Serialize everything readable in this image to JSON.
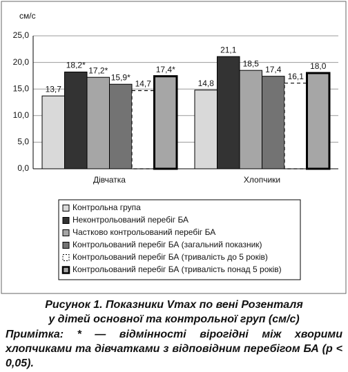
{
  "chart_data": {
    "type": "bar",
    "y_unit": "см/с",
    "categories": [
      "Дівчатка",
      "Хлопчики"
    ],
    "series": [
      {
        "name": "Контрольна група",
        "color": "#d9d9d9",
        "border": "solid",
        "values": [
          13.7,
          14.8
        ],
        "value_labels": [
          "13,7",
          "14,8"
        ]
      },
      {
        "name": "Неконтрольований перебіг БА",
        "color": "#333333",
        "border": "solid",
        "values": [
          18.2,
          21.1
        ],
        "value_labels": [
          "18,2*",
          "21,1"
        ]
      },
      {
        "name": "Частково контрольований перебіг БА",
        "color": "#a6a6a6",
        "border": "solid",
        "values": [
          17.2,
          18.5
        ],
        "value_labels": [
          "17,2*",
          "18,5"
        ]
      },
      {
        "name": "Контрольований перебіг БА (загальний показник)",
        "color": "#737373",
        "border": "solid",
        "values": [
          15.9,
          17.4
        ],
        "value_labels": [
          "15,9*",
          "17,4"
        ]
      },
      {
        "name": "Контрольований перебіг БА (тривалість до 5 років)",
        "color": "#ffffff",
        "border": "dashed",
        "values": [
          14.7,
          16.1
        ],
        "value_labels": [
          "14,7",
          "16,1"
        ]
      },
      {
        "name": "Контрольований перебіг БА (тривалість понад 5 років)",
        "color": "#a6a6a6",
        "border": "thick",
        "values": [
          17.4,
          18.0
        ],
        "value_labels": [
          "17,4*",
          "18,0"
        ]
      }
    ],
    "ylim": [
      0,
      25
    ],
    "yticks": [
      {
        "value": 0,
        "label": "0,0"
      },
      {
        "value": 5,
        "label": "5,0"
      },
      {
        "value": 10,
        "label": "10,0"
      },
      {
        "value": 15,
        "label": "15,0"
      },
      {
        "value": 20,
        "label": "20,0"
      },
      {
        "value": 25,
        "label": "25,0"
      }
    ],
    "grid": true,
    "caption_lines": [
      "Рисунок 1. Показники Vmax по вені Розенталя",
      "у дітей основної та контрольної груп (см/с)"
    ],
    "note": "Примітка: * — відмінності вірогідні між хворими хлопчиками та дівчатками з відповідним перебігом БА (p < 0,05)."
  }
}
